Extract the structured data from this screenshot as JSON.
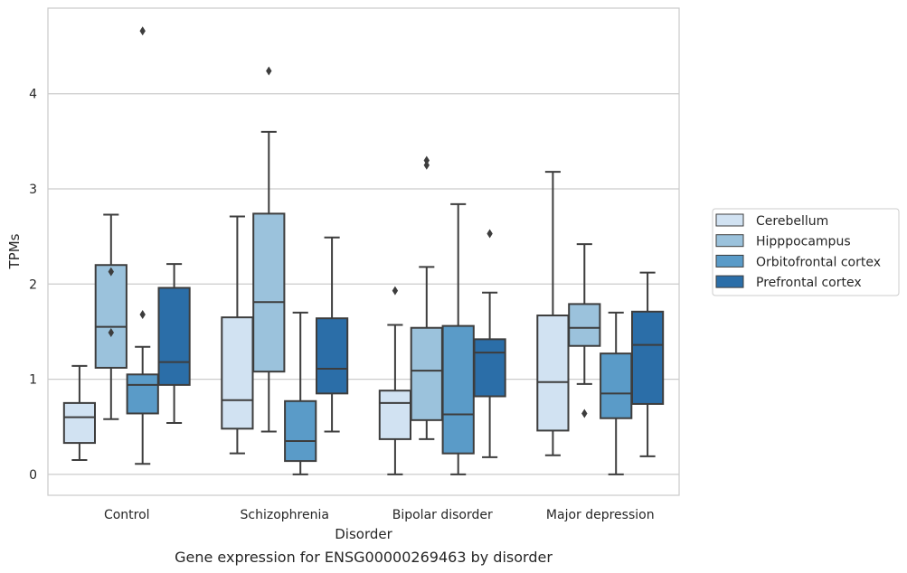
{
  "caption": "Gene expression for ENSG00000269463 by disorder",
  "chart_data": {
    "type": "box",
    "xlabel": "Disorder",
    "ylabel": "TPMs",
    "ylim": [
      -0.22,
      4.9
    ],
    "yticks": [
      0,
      1,
      2,
      3,
      4
    ],
    "grid": "horizontal",
    "legend_position": "right",
    "categories": [
      "Control",
      "Schizophrenia",
      "Bipolar disorder",
      "Major depression"
    ],
    "series": [
      {
        "name": "Cerebellum",
        "color": "#d1e2f2",
        "boxes": [
          {
            "whislo": 0.15,
            "q1": 0.33,
            "med": 0.6,
            "q3": 0.75,
            "whishi": 1.14,
            "fliers": []
          },
          {
            "whislo": 0.22,
            "q1": 0.48,
            "med": 0.78,
            "q3": 1.65,
            "whishi": 2.71,
            "fliers": []
          },
          {
            "whislo": 0.0,
            "q1": 0.37,
            "med": 0.75,
            "q3": 0.88,
            "whishi": 1.57,
            "fliers": [
              1.93
            ]
          },
          {
            "whislo": 0.2,
            "q1": 0.46,
            "med": 0.97,
            "q3": 1.67,
            "whishi": 3.18,
            "fliers": []
          }
        ]
      },
      {
        "name": "Hipppocampus",
        "color": "#9bc2dc",
        "boxes": [
          {
            "whislo": 0.58,
            "q1": 1.12,
            "med": 1.55,
            "q3": 2.2,
            "whishi": 2.73,
            "fliers": [
              2.13,
              1.49
            ]
          },
          {
            "whislo": 0.45,
            "q1": 1.08,
            "med": 1.81,
            "q3": 2.74,
            "whishi": 3.6,
            "fliers": [
              4.24
            ]
          },
          {
            "whislo": 0.37,
            "q1": 0.57,
            "med": 1.09,
            "q3": 1.54,
            "whishi": 2.18,
            "fliers": [
              3.3,
              3.25
            ]
          },
          {
            "whislo": 0.95,
            "q1": 1.35,
            "med": 1.54,
            "q3": 1.79,
            "whishi": 2.42,
            "fliers": [
              0.64
            ]
          }
        ]
      },
      {
        "name": "Orbitofrontal cortex",
        "color": "#5a9bc8",
        "boxes": [
          {
            "whislo": 0.11,
            "q1": 0.64,
            "med": 0.94,
            "q3": 1.05,
            "whishi": 1.34,
            "fliers": [
              4.66,
              1.68
            ]
          },
          {
            "whislo": 0.0,
            "q1": 0.14,
            "med": 0.35,
            "q3": 0.77,
            "whishi": 1.7,
            "fliers": []
          },
          {
            "whislo": 0.0,
            "q1": 0.22,
            "med": 0.63,
            "q3": 1.56,
            "whishi": 2.84,
            "fliers": []
          },
          {
            "whislo": 0.0,
            "q1": 0.59,
            "med": 0.85,
            "q3": 1.27,
            "whishi": 1.7,
            "fliers": []
          }
        ]
      },
      {
        "name": "Prefrontal cortex",
        "color": "#2b6ea8",
        "boxes": [
          {
            "whislo": 0.54,
            "q1": 0.94,
            "med": 1.18,
            "q3": 1.96,
            "whishi": 2.21,
            "fliers": []
          },
          {
            "whislo": 0.45,
            "q1": 0.85,
            "med": 1.11,
            "q3": 1.64,
            "whishi": 2.49,
            "fliers": []
          },
          {
            "whislo": 0.18,
            "q1": 0.82,
            "med": 1.28,
            "q3": 1.42,
            "whishi": 1.91,
            "fliers": [
              2.53
            ]
          },
          {
            "whislo": 0.19,
            "q1": 0.74,
            "med": 1.36,
            "q3": 1.71,
            "whishi": 2.12,
            "fliers": []
          }
        ]
      }
    ]
  }
}
